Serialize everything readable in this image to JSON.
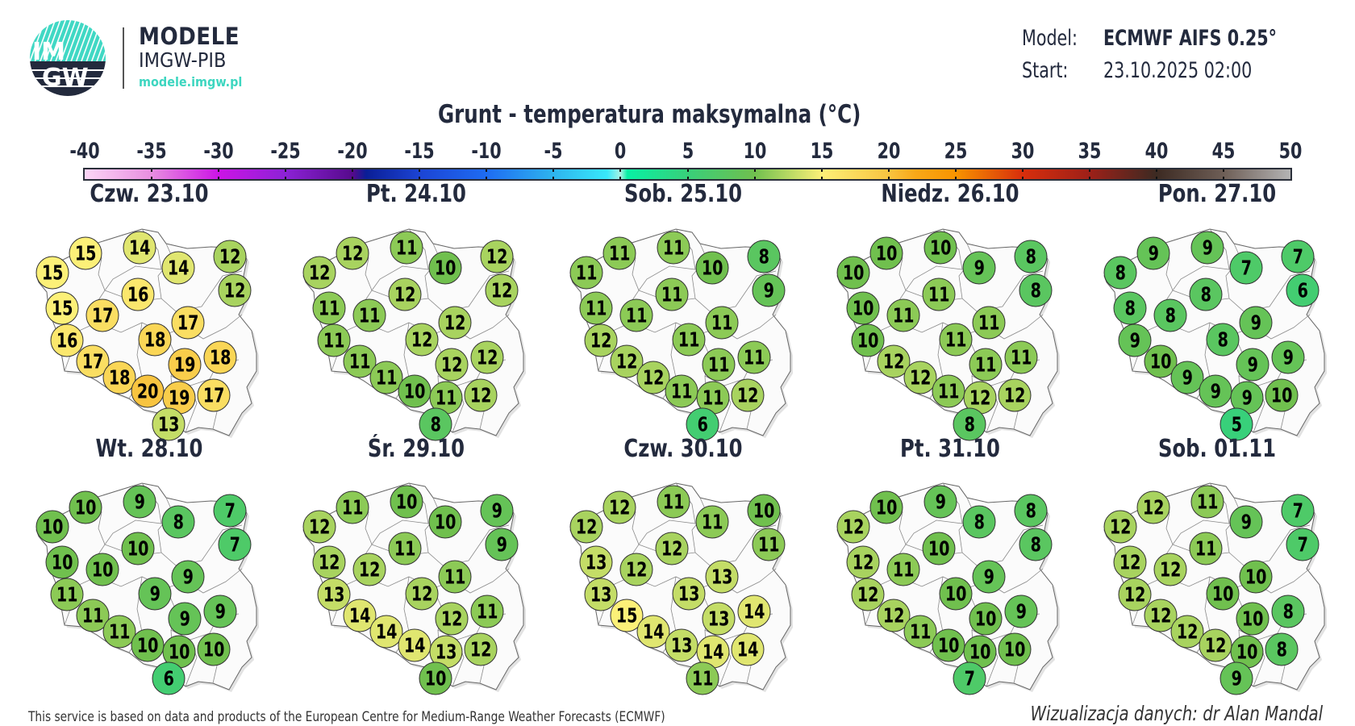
{
  "brand": {
    "name": "MODELE",
    "org": "IMGW-PIB",
    "url": "modele.imgw.pl",
    "logo_text": "IMGW"
  },
  "meta": {
    "model_label": "Model:",
    "model_value": "ECMWF AIFS 0.25°",
    "start_label": "Start:",
    "start_value": "23.10.2025 02:00"
  },
  "title": "Grunt - temperatura maksymalna (°C)",
  "colorbar": {
    "ticks": [
      "-40",
      "-35",
      "-30",
      "-25",
      "-20",
      "-15",
      "-10",
      "-5",
      "0",
      "5",
      "10",
      "15",
      "20",
      "25",
      "30",
      "35",
      "40",
      "45",
      "50"
    ],
    "stops": [
      [
        -40,
        "#fcd6f6"
      ],
      [
        -35,
        "#e88ee0"
      ],
      [
        -30,
        "#cc14e6"
      ],
      [
        -25,
        "#8c22d6"
      ],
      [
        -20,
        "#560a8c"
      ],
      [
        -19,
        "#0a1e96"
      ],
      [
        -15,
        "#1c44d4"
      ],
      [
        -10,
        "#1e6cf2"
      ],
      [
        -5,
        "#2eb4ee"
      ],
      [
        -1,
        "#38e8fa"
      ],
      [
        0,
        "#a8f4e4"
      ],
      [
        0.5,
        "#08f0a4"
      ],
      [
        5,
        "#38d07a"
      ],
      [
        10,
        "#70c04e"
      ],
      [
        15,
        "#fcf078"
      ],
      [
        20,
        "#f8c440"
      ],
      [
        22,
        "#f8a818"
      ],
      [
        25,
        "#f89400"
      ],
      [
        30,
        "#d82e0c"
      ],
      [
        35,
        "#9e2018"
      ],
      [
        40,
        "#3c2a22"
      ],
      [
        45,
        "#6e5e56"
      ],
      [
        50,
        "#b4b4b4"
      ]
    ]
  },
  "maps": [
    {
      "day": "Czw. 23.10",
      "values": [
        15,
        14,
        14,
        12,
        15,
        12,
        16,
        15,
        17,
        17,
        16,
        18,
        19,
        18,
        17,
        18,
        20,
        19,
        17,
        13
      ]
    },
    {
      "day": "Pt. 24.10",
      "values": [
        12,
        11,
        10,
        12,
        12,
        12,
        12,
        11,
        11,
        12,
        11,
        12,
        12,
        12,
        11,
        11,
        10,
        11,
        12,
        8
      ]
    },
    {
      "day": "Sob. 25.10",
      "values": [
        11,
        11,
        10,
        8,
        11,
        9,
        11,
        11,
        11,
        11,
        12,
        11,
        11,
        11,
        12,
        12,
        11,
        11,
        12,
        6
      ]
    },
    {
      "day": "Niedz. 26.10",
      "values": [
        10,
        10,
        9,
        8,
        10,
        8,
        11,
        10,
        11,
        11,
        10,
        11,
        11,
        11,
        12,
        12,
        11,
        12,
        12,
        8
      ]
    },
    {
      "day": "Pon. 27.10",
      "values": [
        9,
        9,
        7,
        7,
        8,
        6,
        8,
        8,
        8,
        9,
        9,
        8,
        9,
        9,
        10,
        9,
        9,
        9,
        10,
        5
      ]
    },
    {
      "day": "Wt. 28.10",
      "values": [
        10,
        9,
        8,
        7,
        10,
        7,
        10,
        10,
        10,
        9,
        11,
        9,
        9,
        9,
        11,
        11,
        10,
        10,
        10,
        6
      ]
    },
    {
      "day": "Śr. 29.10",
      "values": [
        11,
        10,
        10,
        9,
        12,
        9,
        11,
        12,
        12,
        11,
        13,
        12,
        12,
        11,
        14,
        14,
        14,
        13,
        12,
        10
      ]
    },
    {
      "day": "Czw. 30.10",
      "values": [
        12,
        11,
        11,
        10,
        12,
        11,
        12,
        13,
        12,
        13,
        13,
        13,
        13,
        14,
        15,
        14,
        13,
        14,
        14,
        11
      ]
    },
    {
      "day": "Pt. 31.10",
      "values": [
        10,
        9,
        8,
        8,
        12,
        8,
        10,
        12,
        11,
        9,
        12,
        10,
        10,
        9,
        12,
        11,
        10,
        10,
        10,
        7
      ]
    },
    {
      "day": "Sob. 01.11",
      "values": [
        12,
        11,
        9,
        7,
        12,
        7,
        11,
        12,
        12,
        10,
        12,
        10,
        10,
        8,
        12,
        12,
        12,
        10,
        8,
        9
      ]
    }
  ],
  "footer": {
    "left": "This service is based on data and products of the European Centre for Medium-Range Weather Forecasts (ECMWF)",
    "right": "Wizualizacja danych: dr Alan Mandal"
  }
}
